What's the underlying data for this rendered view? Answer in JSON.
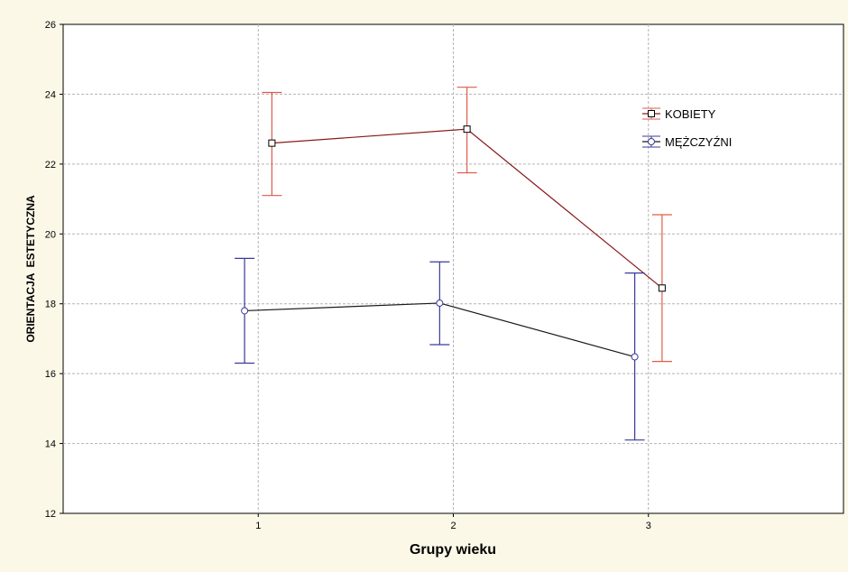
{
  "chart_data": {
    "type": "line",
    "xlabel": "Grupy wieku",
    "ylabel": "ORIENTACJA  ESTETYCZNA",
    "x_ticks": [
      "1",
      "2",
      "3"
    ],
    "y_ticks": [
      "12",
      "14",
      "16",
      "18",
      "20",
      "22",
      "24",
      "26"
    ],
    "xlim": [
      0,
      4
    ],
    "ylim": [
      12,
      26
    ],
    "grid": true,
    "legend_position": "top-right",
    "series": [
      {
        "name": "KOBIETY",
        "marker": "square",
        "line_color": "#8b1a1a",
        "error_bar_color": "#e05a4a",
        "points": [
          {
            "x": 1.07,
            "y": 22.6,
            "low": 21.1,
            "high": 24.05
          },
          {
            "x": 2.07,
            "y": 23.0,
            "low": 21.75,
            "high": 24.2
          },
          {
            "x": 3.07,
            "y": 18.45,
            "low": 16.35,
            "high": 20.55
          }
        ]
      },
      {
        "name": "MĘŻCZYŹNI",
        "marker": "circle",
        "line_color": "#1a1a1a",
        "error_bar_color": "#3a3a9a",
        "points": [
          {
            "x": 0.93,
            "y": 17.8,
            "low": 16.3,
            "high": 19.3
          },
          {
            "x": 1.93,
            "y": 18.02,
            "low": 16.83,
            "high": 19.2
          },
          {
            "x": 2.93,
            "y": 16.48,
            "low": 14.1,
            "high": 18.88
          }
        ]
      }
    ]
  }
}
